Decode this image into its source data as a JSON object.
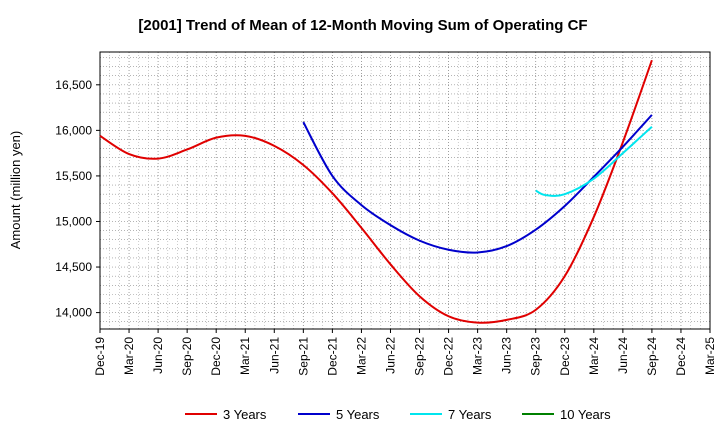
{
  "chart_data": {
    "type": "line",
    "title": "[2001]  Trend of Mean of 12-Month Moving Sum of Operating CF",
    "xlabel": "",
    "ylabel": "Amount (million yen)",
    "ylim": [
      13820,
      16860
    ],
    "yticks": [
      14000,
      14500,
      15000,
      15500,
      16000,
      16500
    ],
    "ytick_labels": [
      "14,000",
      "14,500",
      "15,000",
      "15,500",
      "16,000",
      "16,500"
    ],
    "x_categories": [
      "Dec-19",
      "Mar-20",
      "Jun-20",
      "Sep-20",
      "Dec-20",
      "Mar-21",
      "Jun-21",
      "Sep-21",
      "Dec-21",
      "Mar-22",
      "Jun-22",
      "Sep-22",
      "Dec-22",
      "Mar-23",
      "Jun-23",
      "Sep-23",
      "Dec-23",
      "Mar-24",
      "Jun-24",
      "Sep-24",
      "Dec-24",
      "Mar-25"
    ],
    "grid": true,
    "legend_position": "bottom",
    "series": [
      {
        "name": "3 Years",
        "color": "#e00000",
        "x": [
          "Dec-19",
          "Mar-20",
          "Jun-20",
          "Sep-20",
          "Dec-20",
          "Mar-21",
          "Jun-21",
          "Sep-21",
          "Dec-21",
          "Mar-22",
          "Jun-22",
          "Sep-22",
          "Dec-22",
          "Mar-23",
          "Jun-23",
          "Sep-23",
          "Dec-23",
          "Mar-24",
          "Jun-24",
          "Sep-24"
        ],
        "values": [
          15940,
          15740,
          15690,
          15790,
          15920,
          15940,
          15830,
          15620,
          15310,
          14930,
          14530,
          14180,
          13960,
          13890,
          13920,
          14030,
          14400,
          15050,
          15870,
          16770
        ]
      },
      {
        "name": "5 Years",
        "color": "#0000cc",
        "x": [
          "Sep-21",
          "Dec-21",
          "Mar-22",
          "Jun-22",
          "Sep-22",
          "Dec-22",
          "Mar-23",
          "Jun-23",
          "Sep-23",
          "Dec-23",
          "Mar-24",
          "Jun-24",
          "Sep-24"
        ],
        "values": [
          16090,
          15500,
          15180,
          14960,
          14790,
          14690,
          14660,
          14730,
          14910,
          15170,
          15490,
          15820,
          16170
        ]
      },
      {
        "name": "7 Years",
        "color": "#00e5ee",
        "x": [
          "Sep-23",
          "Oct-23",
          "Dec-23",
          "Mar-24",
          "Jun-24",
          "Sep-24"
        ],
        "values": [
          15340,
          15290,
          15300,
          15470,
          15750,
          16040
        ]
      },
      {
        "name": "10 Years",
        "color": "#008000",
        "x": [],
        "values": []
      }
    ]
  }
}
